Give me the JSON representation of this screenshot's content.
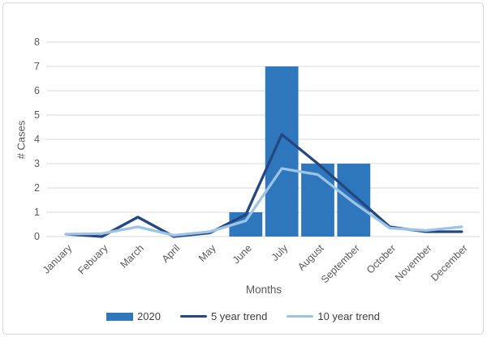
{
  "chart_data": {
    "type": "combo-bar-line",
    "title": "",
    "xlabel": "Months",
    "ylabel": "# Cases",
    "ylim": [
      0,
      8
    ],
    "y_tick_step": 1,
    "grid": true,
    "legend_position": "bottom",
    "categories": [
      "January",
      "Febuary",
      "March",
      "April",
      "May",
      "June",
      "July",
      "August",
      "September",
      "October",
      "November",
      "December"
    ],
    "series": [
      {
        "name": "2020",
        "type": "bar",
        "color": "#2e77bc",
        "values": [
          0,
          0,
          0,
          0,
          0,
          1,
          7,
          3,
          3,
          0,
          0,
          0
        ]
      },
      {
        "name": "5 year trend",
        "type": "line",
        "color": "#24477f",
        "values": [
          0.1,
          0,
          0.8,
          0,
          0.15,
          0.9,
          4.2,
          3,
          1.7,
          0.4,
          0.2,
          0.2
        ]
      },
      {
        "name": "10 year trend",
        "type": "line",
        "color": "#9dc3e6",
        "values": [
          0.1,
          0.12,
          0.4,
          0.05,
          0.2,
          0.65,
          2.8,
          2.55,
          1.4,
          0.35,
          0.25,
          0.4
        ]
      }
    ]
  },
  "style_colors": {
    "gridline": "#d9d9d9",
    "axis_text": "#595959",
    "legend_text": "#3f3f3f",
    "chart_border": "#d6d6d6"
  }
}
